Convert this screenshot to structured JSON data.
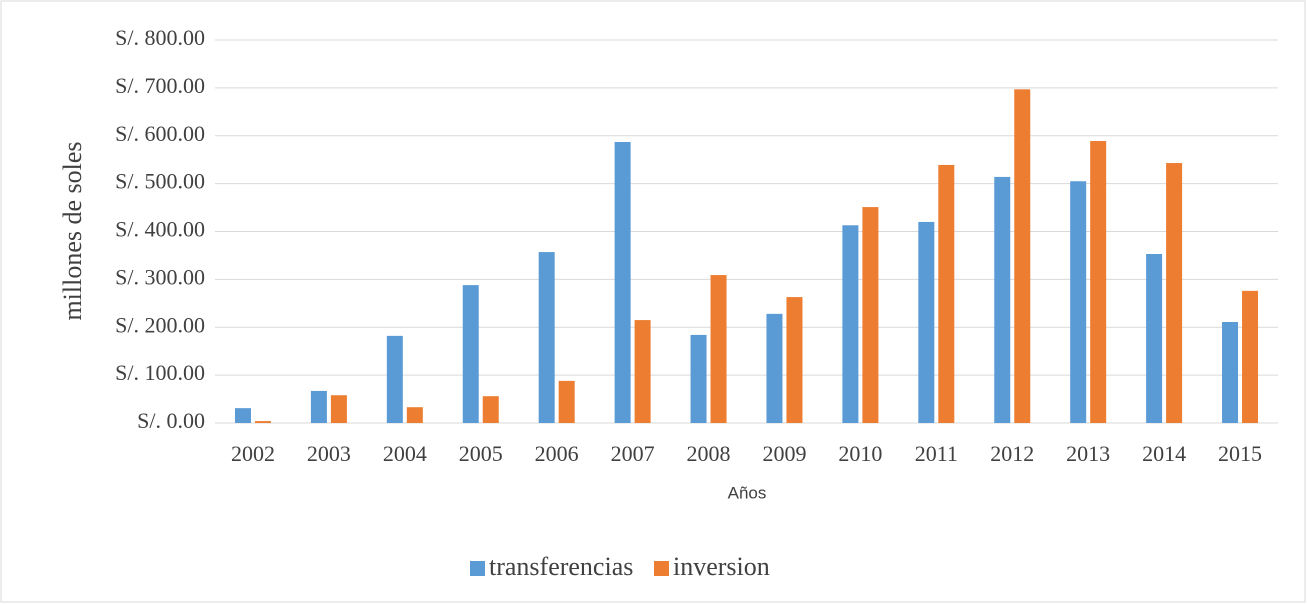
{
  "chart_data": {
    "type": "bar",
    "x_label": "Años",
    "y_label": "millones de soles",
    "categories": [
      "2002",
      "2003",
      "2004",
      "2005",
      "2006",
      "2007",
      "2008",
      "2009",
      "2010",
      "2011",
      "2012",
      "2013",
      "2014",
      "2015"
    ],
    "series": [
      {
        "name": "transferencias",
        "color": "#5b9bd5",
        "values": [
          31,
          67,
          182,
          288,
          357,
          587,
          184,
          228,
          413,
          420,
          514,
          505,
          353,
          211
        ]
      },
      {
        "name": "inversion",
        "color": "#ed7d31",
        "values": [
          4,
          58,
          33,
          56,
          88,
          215,
          309,
          263,
          451,
          539,
          697,
          589,
          543,
          276
        ]
      }
    ],
    "ylim": [
      0,
      800
    ],
    "yticks": [
      {
        "value": 0,
        "label": "S/. 0.00"
      },
      {
        "value": 100,
        "label": "S/. 100.00"
      },
      {
        "value": 200,
        "label": "S/. 200.00"
      },
      {
        "value": 300,
        "label": "S/. 300.00"
      },
      {
        "value": 400,
        "label": "S/. 400.00"
      },
      {
        "value": 500,
        "label": "S/. 500.00"
      },
      {
        "value": 600,
        "label": "S/. 600.00"
      },
      {
        "value": 700,
        "label": "S/. 700.00"
      },
      {
        "value": 800,
        "label": "S/. 800.00"
      }
    ],
    "grid": true,
    "legend": "bottom"
  }
}
